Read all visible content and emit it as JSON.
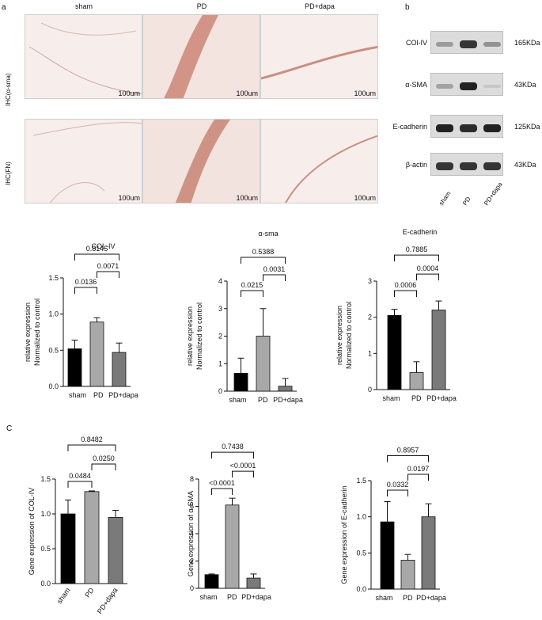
{
  "panels": {
    "a": "a",
    "b": "b",
    "c": "C"
  },
  "ihc": {
    "columns": [
      "sham",
      "PD",
      "PD+dapa"
    ],
    "rows": [
      "IHC(α-sma)",
      "IHC(FN)"
    ],
    "scale_label": "100um"
  },
  "western": {
    "proteins": [
      {
        "name": "COl-IV",
        "kda": "165KDa",
        "bands": [
          0.35,
          0.9,
          0.4
        ]
      },
      {
        "name": "α-SMA",
        "kda": "43KDa",
        "bands": [
          0.3,
          1.0,
          0.1
        ]
      },
      {
        "name": "E-cadherin",
        "kda": "125KDa",
        "bands": [
          1.0,
          0.95,
          1.0
        ]
      },
      {
        "name": "β-actin",
        "kda": "43KDa",
        "bands": [
          0.9,
          0.9,
          0.9
        ]
      }
    ],
    "lanes": [
      "sham",
      "PD",
      "PD+dapa"
    ]
  },
  "chart_data": [
    {
      "type": "bar",
      "title": "COL-IV",
      "ylabel": "relative expression\nNormalized to control",
      "categories": [
        "sham",
        "PD",
        "PD+dapa"
      ],
      "values": [
        0.52,
        0.89,
        0.47
      ],
      "errors": [
        0.12,
        0.06,
        0.13
      ],
      "ylim": [
        0,
        1.5
      ],
      "yticks": [
        0,
        0.5,
        1.0,
        1.5
      ],
      "colors": [
        "#000000",
        "#a8a8a8",
        "#7a7a7a"
      ],
      "comparisons": [
        {
          "a": 0,
          "b": 1,
          "p": "0.0136"
        },
        {
          "a": 1,
          "b": 2,
          "p": "0.0071"
        },
        {
          "a": 0,
          "b": 2,
          "p": "0.8145"
        }
      ]
    },
    {
      "type": "bar",
      "title": "α-sma",
      "ylabel": "relative expression\nNormalized to control",
      "categories": [
        "sham",
        "PD",
        "PD+dapa"
      ],
      "values": [
        0.65,
        2.0,
        0.18
      ],
      "errors": [
        0.55,
        1.0,
        0.28
      ],
      "ylim": [
        0,
        4
      ],
      "yticks": [
        0,
        1,
        2,
        3,
        4
      ],
      "colors": [
        "#000000",
        "#a8a8a8",
        "#7a7a7a"
      ],
      "comparisons": [
        {
          "a": 0,
          "b": 1,
          "p": "0.0215"
        },
        {
          "a": 1,
          "b": 2,
          "p": "0.0031"
        },
        {
          "a": 0,
          "b": 2,
          "p": "0.5388"
        }
      ]
    },
    {
      "type": "bar",
      "title": "E-cadherin",
      "ylabel": "relative expression\nNormalized to control",
      "categories": [
        "sham",
        "PD",
        "PD+dapa"
      ],
      "values": [
        2.05,
        0.47,
        2.2
      ],
      "errors": [
        0.17,
        0.3,
        0.25
      ],
      "ylim": [
        0,
        3
      ],
      "yticks": [
        0,
        1,
        2,
        3
      ],
      "colors": [
        "#000000",
        "#a8a8a8",
        "#7a7a7a"
      ],
      "comparisons": [
        {
          "a": 0,
          "b": 1,
          "p": "0.0006"
        },
        {
          "a": 1,
          "b": 2,
          "p": "0.0004"
        },
        {
          "a": 0,
          "b": 2,
          "p": "0.7885"
        }
      ]
    },
    {
      "type": "bar",
      "title": "",
      "ylabel": "Gene expression of COL-IV",
      "categories": [
        "sham",
        "PD",
        "PD+dapa"
      ],
      "values": [
        1.0,
        1.32,
        0.95
      ],
      "errors": [
        0.2,
        0.01,
        0.1
      ],
      "ylim": [
        0,
        1.5
      ],
      "yticks": [
        0,
        0.5,
        1.0,
        1.5
      ],
      "colors": [
        "#000000",
        "#a8a8a8",
        "#7a7a7a"
      ],
      "comparisons": [
        {
          "a": 0,
          "b": 1,
          "p": "0.0484"
        },
        {
          "a": 1,
          "b": 2,
          "p": "0.0250"
        },
        {
          "a": 0,
          "b": 2,
          "p": "0.8482"
        }
      ]
    },
    {
      "type": "bar",
      "title": "",
      "ylabel": "Gene expression of α-SMA",
      "categories": [
        "sham",
        "PD",
        "PD+dapa"
      ],
      "values": [
        1.0,
        6.1,
        0.75
      ],
      "errors": [
        0.05,
        0.5,
        0.3
      ],
      "ylim": [
        0,
        8
      ],
      "yticks": [
        0,
        2,
        4,
        6,
        8
      ],
      "colors": [
        "#000000",
        "#a8a8a8",
        "#7a7a7a"
      ],
      "comparisons": [
        {
          "a": 0,
          "b": 1,
          "p": "<0.0001"
        },
        {
          "a": 1,
          "b": 2,
          "p": "<0.0001"
        },
        {
          "a": 0,
          "b": 2,
          "p": "0.7438"
        }
      ]
    },
    {
      "type": "bar",
      "title": "",
      "ylabel": "Gene expression of E-cadherin",
      "categories": [
        "sham",
        "PD",
        "PD+dapa"
      ],
      "values": [
        0.93,
        0.4,
        1.0
      ],
      "errors": [
        0.28,
        0.08,
        0.18
      ],
      "ylim": [
        0,
        1.5
      ],
      "yticks": [
        0,
        0.5,
        1.0,
        1.5
      ],
      "colors": [
        "#000000",
        "#a8a8a8",
        "#7a7a7a"
      ],
      "comparisons": [
        {
          "a": 0,
          "b": 1,
          "p": "0.0332"
        },
        {
          "a": 1,
          "b": 2,
          "p": "0.0197"
        },
        {
          "a": 0,
          "b": 2,
          "p": "0.8957"
        }
      ]
    }
  ]
}
